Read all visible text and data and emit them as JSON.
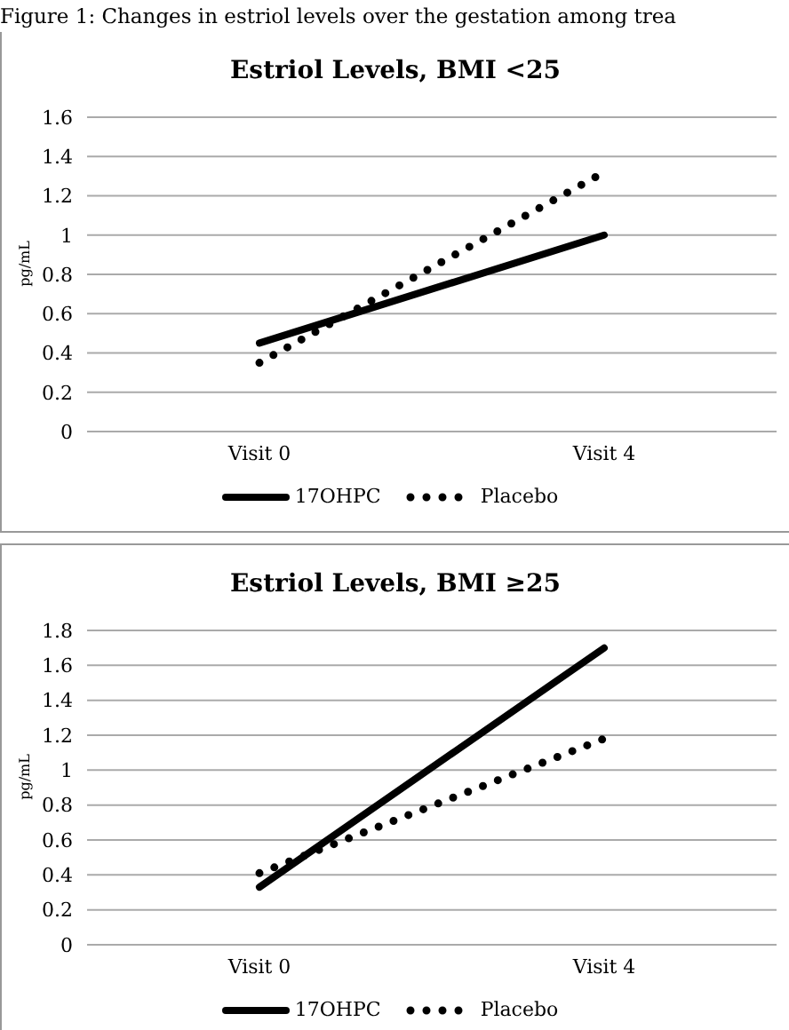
{
  "chart_data": [
    {
      "type": "line",
      "title": "Estriol Levels, BMI <25",
      "ylabel": "pg/mL",
      "annotations": [
        "Figure 1: Changes in estriol levels over the gestation among trea"
      ],
      "categories": [
        "Visit 0",
        "Visit 4"
      ],
      "series": [
        {
          "name": "17OHPC",
          "color": "#000000",
          "values": [
            0.45,
            1.0
          ],
          "line_style": "solid"
        },
        {
          "name": "Placebo",
          "color": "#000000",
          "values": [
            0.35,
            1.32
          ],
          "line_style": "dotted"
        }
      ],
      "ylim": [
        0,
        1.6
      ],
      "yticks": [
        0,
        0.2,
        0.4,
        0.6,
        0.8,
        1,
        1.2,
        1.4,
        1.6
      ],
      "grid": "y",
      "legend": "bottom",
      "marker": "none"
    },
    {
      "type": "line",
      "title": "Estriol Levels, BMI ≥25",
      "ylabel": "pg/mL",
      "categories": [
        "Visit 0",
        "Visit 4"
      ],
      "series": [
        {
          "name": "17OHPC",
          "color": "#000000",
          "values": [
            0.33,
            1.7
          ],
          "line_style": "solid"
        },
        {
          "name": "Placebo",
          "color": "#000000",
          "values": [
            0.41,
            1.18
          ],
          "line_style": "dotted"
        }
      ],
      "ylim": [
        0,
        1.8
      ],
      "yticks": [
        0,
        0.2,
        0.4,
        0.6,
        0.8,
        1,
        1.2,
        1.4,
        1.6,
        1.8
      ],
      "grid": "y",
      "legend": "bottom",
      "marker": "none"
    }
  ]
}
